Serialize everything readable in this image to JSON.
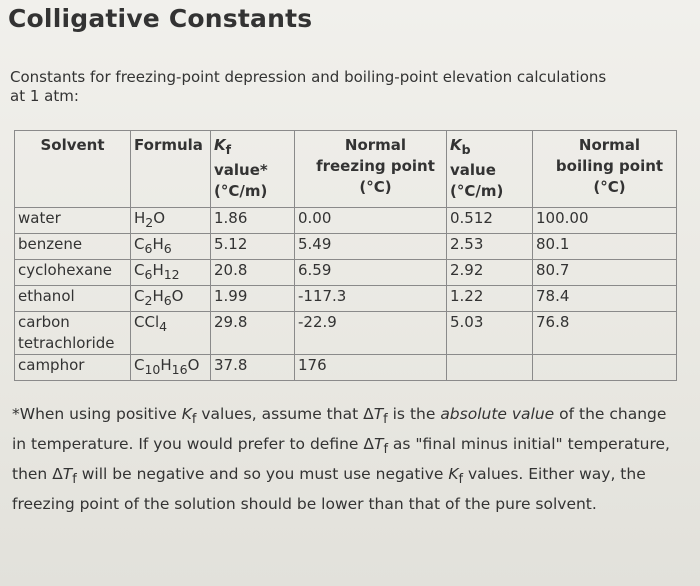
{
  "title": "Colligative Constants",
  "intro": "Constants for freezing-point depression and boiling-point elevation calculations at 1 atm:",
  "table": {
    "headers": {
      "solvent": "Solvent",
      "formula": "Formula",
      "kf_symbol": "K",
      "kf_sub": "f",
      "kf_rest": "value*",
      "kf_unit": "(°C/m)",
      "freezing": "Normal freezing point (°C)",
      "kb_symbol": "K",
      "kb_sub": "b",
      "kb_rest": "value",
      "kb_unit": "(°C/m)",
      "boiling": "Normal boiling point (°C)"
    },
    "rows": [
      {
        "solvent": "water",
        "formula": [
          "H",
          "2",
          "O"
        ],
        "kf": "1.86",
        "fp": "0.00",
        "kb": "0.512",
        "bp": "100.00"
      },
      {
        "solvent": "benzene",
        "formula": [
          "C",
          "6",
          "H",
          "6"
        ],
        "kf": "5.12",
        "fp": "5.49",
        "kb": "2.53",
        "bp": "80.1"
      },
      {
        "solvent": "cyclohexane",
        "formula": [
          "C",
          "6",
          "H",
          "12"
        ],
        "kf": "20.8",
        "fp": "6.59",
        "kb": "2.92",
        "bp": "80.7"
      },
      {
        "solvent": "ethanol",
        "formula": [
          "C",
          "2",
          "H",
          "6",
          "O"
        ],
        "kf": "1.99",
        "fp": "-117.3",
        "kb": "1.22",
        "bp": "78.4"
      },
      {
        "solvent": "carbon tetrachloride",
        "formula": [
          "CCl",
          "4"
        ],
        "kf": "29.8",
        "fp": "-22.9",
        "kb": "5.03",
        "bp": "76.8"
      },
      {
        "solvent": "camphor",
        "formula": [
          "C",
          "10",
          "H",
          "16",
          "O"
        ],
        "kf": "37.8",
        "fp": "176",
        "kb": "",
        "bp": ""
      }
    ]
  },
  "footnote": {
    "p1": "*When using positive ",
    "k1": "K",
    "k1sub": "f",
    "p2": " values, assume that Δ",
    "t1": "T",
    "t1sub": "f",
    "p3": " is the ",
    "em": "absolute value",
    "p4": " of the change in temperature. If you would prefer to define Δ",
    "t2": "T",
    "t2sub": "f",
    "p5": " as \"final minus initial\" temperature, then Δ",
    "t3": "T",
    "t3sub": "f",
    "p6": " will be negative and so you must use negative ",
    "k2": "K",
    "k2sub": "f",
    "p7": " values. Either way, the freezing point of the solution should be lower than that of the pure solvent."
  }
}
